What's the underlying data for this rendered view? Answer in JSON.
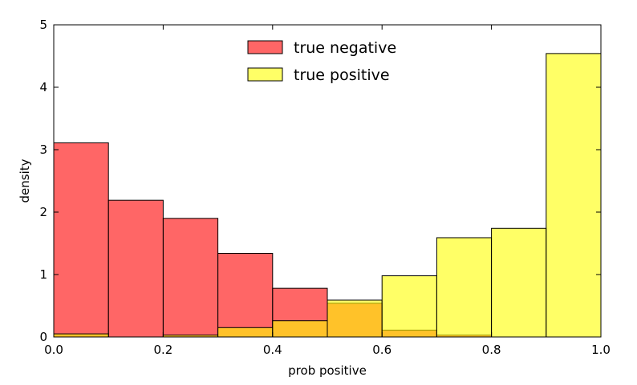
{
  "chart_data": {
    "type": "bar",
    "subtype": "overlaid-histogram",
    "title": "",
    "xlabel": "prob positive",
    "ylabel": "density",
    "xlim": [
      0.0,
      1.0
    ],
    "ylim": [
      0,
      5
    ],
    "xticks": [
      "0.0",
      "0.2",
      "0.4",
      "0.6",
      "0.8",
      "1.0"
    ],
    "yticks": [
      "0",
      "1",
      "2",
      "3",
      "4",
      "5"
    ],
    "bin_edges": [
      0.0,
      0.1,
      0.2,
      0.3,
      0.4,
      0.5,
      0.6,
      0.7,
      0.8,
      0.9,
      1.0
    ],
    "grid": false,
    "legend_position": "top-center",
    "series": [
      {
        "name": "true negative",
        "color": "#ff0000",
        "alpha": 0.6,
        "values": [
          3.11,
          2.19,
          1.9,
          1.34,
          0.78,
          0.54,
          0.11,
          0.03,
          0.0,
          0.0
        ]
      },
      {
        "name": "true positive",
        "color": "#ffff00",
        "alpha": 0.6,
        "values": [
          0.05,
          0.0,
          0.03,
          0.15,
          0.26,
          0.59,
          0.98,
          1.59,
          1.74,
          4.54
        ]
      }
    ]
  }
}
